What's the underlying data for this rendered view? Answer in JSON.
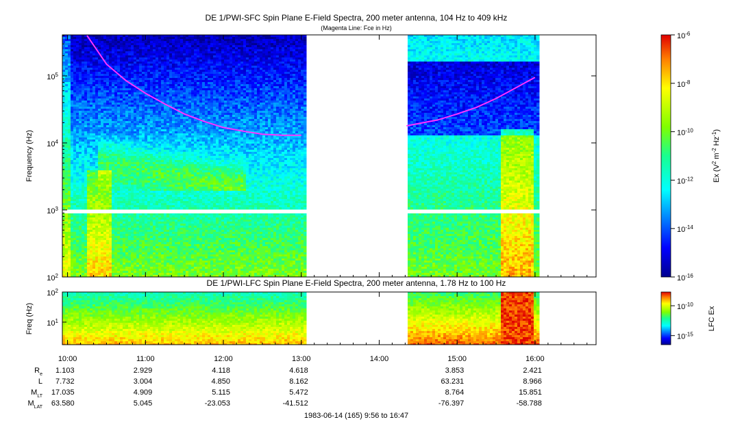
{
  "chart_data": [
    {
      "type": "heatmap",
      "title": "DE 1/PWI-SFC  Spin Plane E-Field Spectra, 200 meter antenna, 104 Hz to 409 kHz",
      "subtitle": "(Magenta Line: Fce in Hz)",
      "ylabel": "Frequency (Hz)",
      "yscale": "log",
      "ylim": [
        100,
        409000
      ],
      "y_ticks": [
        "10^2",
        "10^3",
        "10^4",
        "10^5"
      ],
      "y_tick_values": [
        100,
        1000,
        10000,
        100000
      ],
      "x_range_hours": [
        9.9333,
        16.7833
      ],
      "data_gap_hours": [
        13.05,
        14.35
      ],
      "colorbar": {
        "label": "Ex (V^2 m^-2 Hz^-1)",
        "label_parts": [
          "Ex (V",
          "2",
          " m",
          "-2",
          " Hz",
          "-1",
          ")"
        ],
        "scale": "log",
        "range": [
          1e-16,
          1e-06
        ],
        "ticks": [
          "10^-16",
          "10^-14",
          "10^-12",
          "10^-10",
          "10^-8",
          "10^-6"
        ],
        "tick_values": [
          1e-16,
          1e-14,
          1e-12,
          1e-10,
          1e-08,
          1e-06
        ]
      },
      "fce_line": {
        "color": "#ff33ff",
        "segments": [
          {
            "x": [
              10.25,
              10.5,
              10.75,
              11.0,
              11.25,
              11.5,
              11.75,
              12.0,
              12.25,
              12.5,
              12.75,
              13.0
            ],
            "y": [
              400000,
              150000,
              85000,
              55000,
              38000,
              27000,
              21000,
              17000,
              15000,
              13500,
              13000,
              13000
            ]
          },
          {
            "x": [
              14.35,
              14.75,
              15.0,
              15.25,
              15.5,
              15.75,
              16.0
            ],
            "y": [
              18000,
              22000,
              27000,
              34000,
              46000,
              66000,
              95000
            ]
          }
        ]
      }
    },
    {
      "type": "heatmap",
      "title": "DE 1/PWI-LFC  Spin Plane E-Field Spectra, 200 meter antenna, 1.78 Hz to 100 Hz",
      "ylabel": "Freq (Hz)",
      "yscale": "log",
      "ylim": [
        1.78,
        100
      ],
      "y_ticks": [
        "10^1",
        "10^2"
      ],
      "y_tick_values": [
        10,
        100
      ],
      "colorbar": {
        "label": "LFC Ex",
        "scale": "log",
        "range": [
          3e-17,
          2e-08
        ],
        "ticks": [
          "10^-15",
          "10^-10"
        ],
        "tick_values": [
          1e-15,
          1e-10
        ]
      }
    }
  ],
  "x_axis": {
    "ticks": [
      "10:00",
      "11:00",
      "12:00",
      "13:00",
      "14:00",
      "15:00",
      "16:00"
    ],
    "tick_hours": [
      10,
      11,
      12,
      13,
      14,
      15,
      16
    ],
    "date_label": "1983-06-14 (165) 9:56 to 16:47"
  },
  "ephemeris": {
    "hours": [
      10,
      11,
      12,
      13,
      15,
      16
    ],
    "rows": [
      {
        "label": "R",
        "sub": "e",
        "values": [
          "1.103",
          "2.929",
          "4.118",
          "4.618",
          "3.853",
          "2.421"
        ]
      },
      {
        "label": "L",
        "sub": "",
        "values": [
          "7.732",
          "3.004",
          "4.850",
          "8.162",
          "63.231",
          "8.966"
        ]
      },
      {
        "label": "M",
        "sub": "LT",
        "values": [
          "17.035",
          "4.909",
          "5.115",
          "5.472",
          "8.764",
          "15.851"
        ]
      },
      {
        "label": "M",
        "sub": "LAT",
        "values": [
          "63.580",
          "5.045",
          "-23.053",
          "-41.512",
          "-76.397",
          "-58.788"
        ]
      }
    ]
  }
}
